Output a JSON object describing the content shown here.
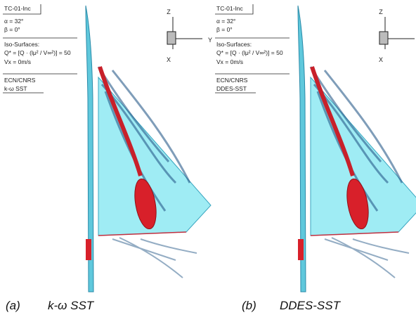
{
  "panels": [
    {
      "info": {
        "case": "TC-01-Inc",
        "alpha": "α = 32°",
        "beta": "β = 0°",
        "iso_title": "Iso-Surfaces:",
        "iso_q": "Q* = [Q · (lμ² / V∞²)] = 50",
        "vx": "Vx = 0m/s",
        "org": "ECN/CNRS",
        "model": "k-ω SST"
      },
      "axes": {
        "z": "Z",
        "y": "Y",
        "x": "X"
      },
      "caption": {
        "label": "(a)",
        "text": "k-ω SST"
      }
    },
    {
      "info": {
        "case": "TC-01-Inc",
        "alpha": "α = 32°",
        "beta": "β = 0°",
        "iso_title": "Iso-Surfaces:",
        "iso_q": "Q* = [Q · (lμ² / V∞²)] = 50",
        "vx": "Vx = 0m/s",
        "org": "ECN/CNRS",
        "model": "DDES-SST"
      },
      "axes": {
        "z": "Z",
        "y": "Y",
        "x": "X"
      },
      "caption": {
        "label": "(b)",
        "text": "DDES-SST"
      }
    }
  ]
}
